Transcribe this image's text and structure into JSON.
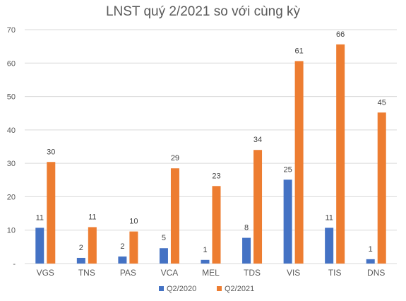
{
  "chart_data": {
    "type": "bar",
    "title": "LNST quý 2/2021 so với cùng kỳ",
    "categories": [
      "VGS",
      "TNS",
      "PAS",
      "VCA",
      "MEL",
      "TDS",
      "VIS",
      "TIS",
      "DNS"
    ],
    "series": [
      {
        "name": "Q2/2020",
        "color": "#4472C4",
        "values": [
          10.7,
          1.7,
          2.1,
          4.6,
          1.1,
          7.7,
          25.1,
          10.7,
          1.3
        ],
        "labels": [
          "11",
          "2",
          "2",
          "5",
          "1",
          "8",
          "25",
          "11",
          "1"
        ]
      },
      {
        "name": "Q2/2021",
        "color": "#ED7D31",
        "values": [
          30.4,
          10.9,
          9.6,
          28.5,
          23.2,
          34.0,
          60.6,
          65.6,
          45.2
        ],
        "labels": [
          "30",
          "11",
          "10",
          "29",
          "23",
          "34",
          "61",
          "66",
          "45"
        ]
      }
    ],
    "yticks": [
      "-",
      "10",
      "20",
      "30",
      "40",
      "50",
      "60",
      "70"
    ],
    "ylim": [
      0,
      70
    ],
    "grid": true,
    "legend": "bottom"
  }
}
